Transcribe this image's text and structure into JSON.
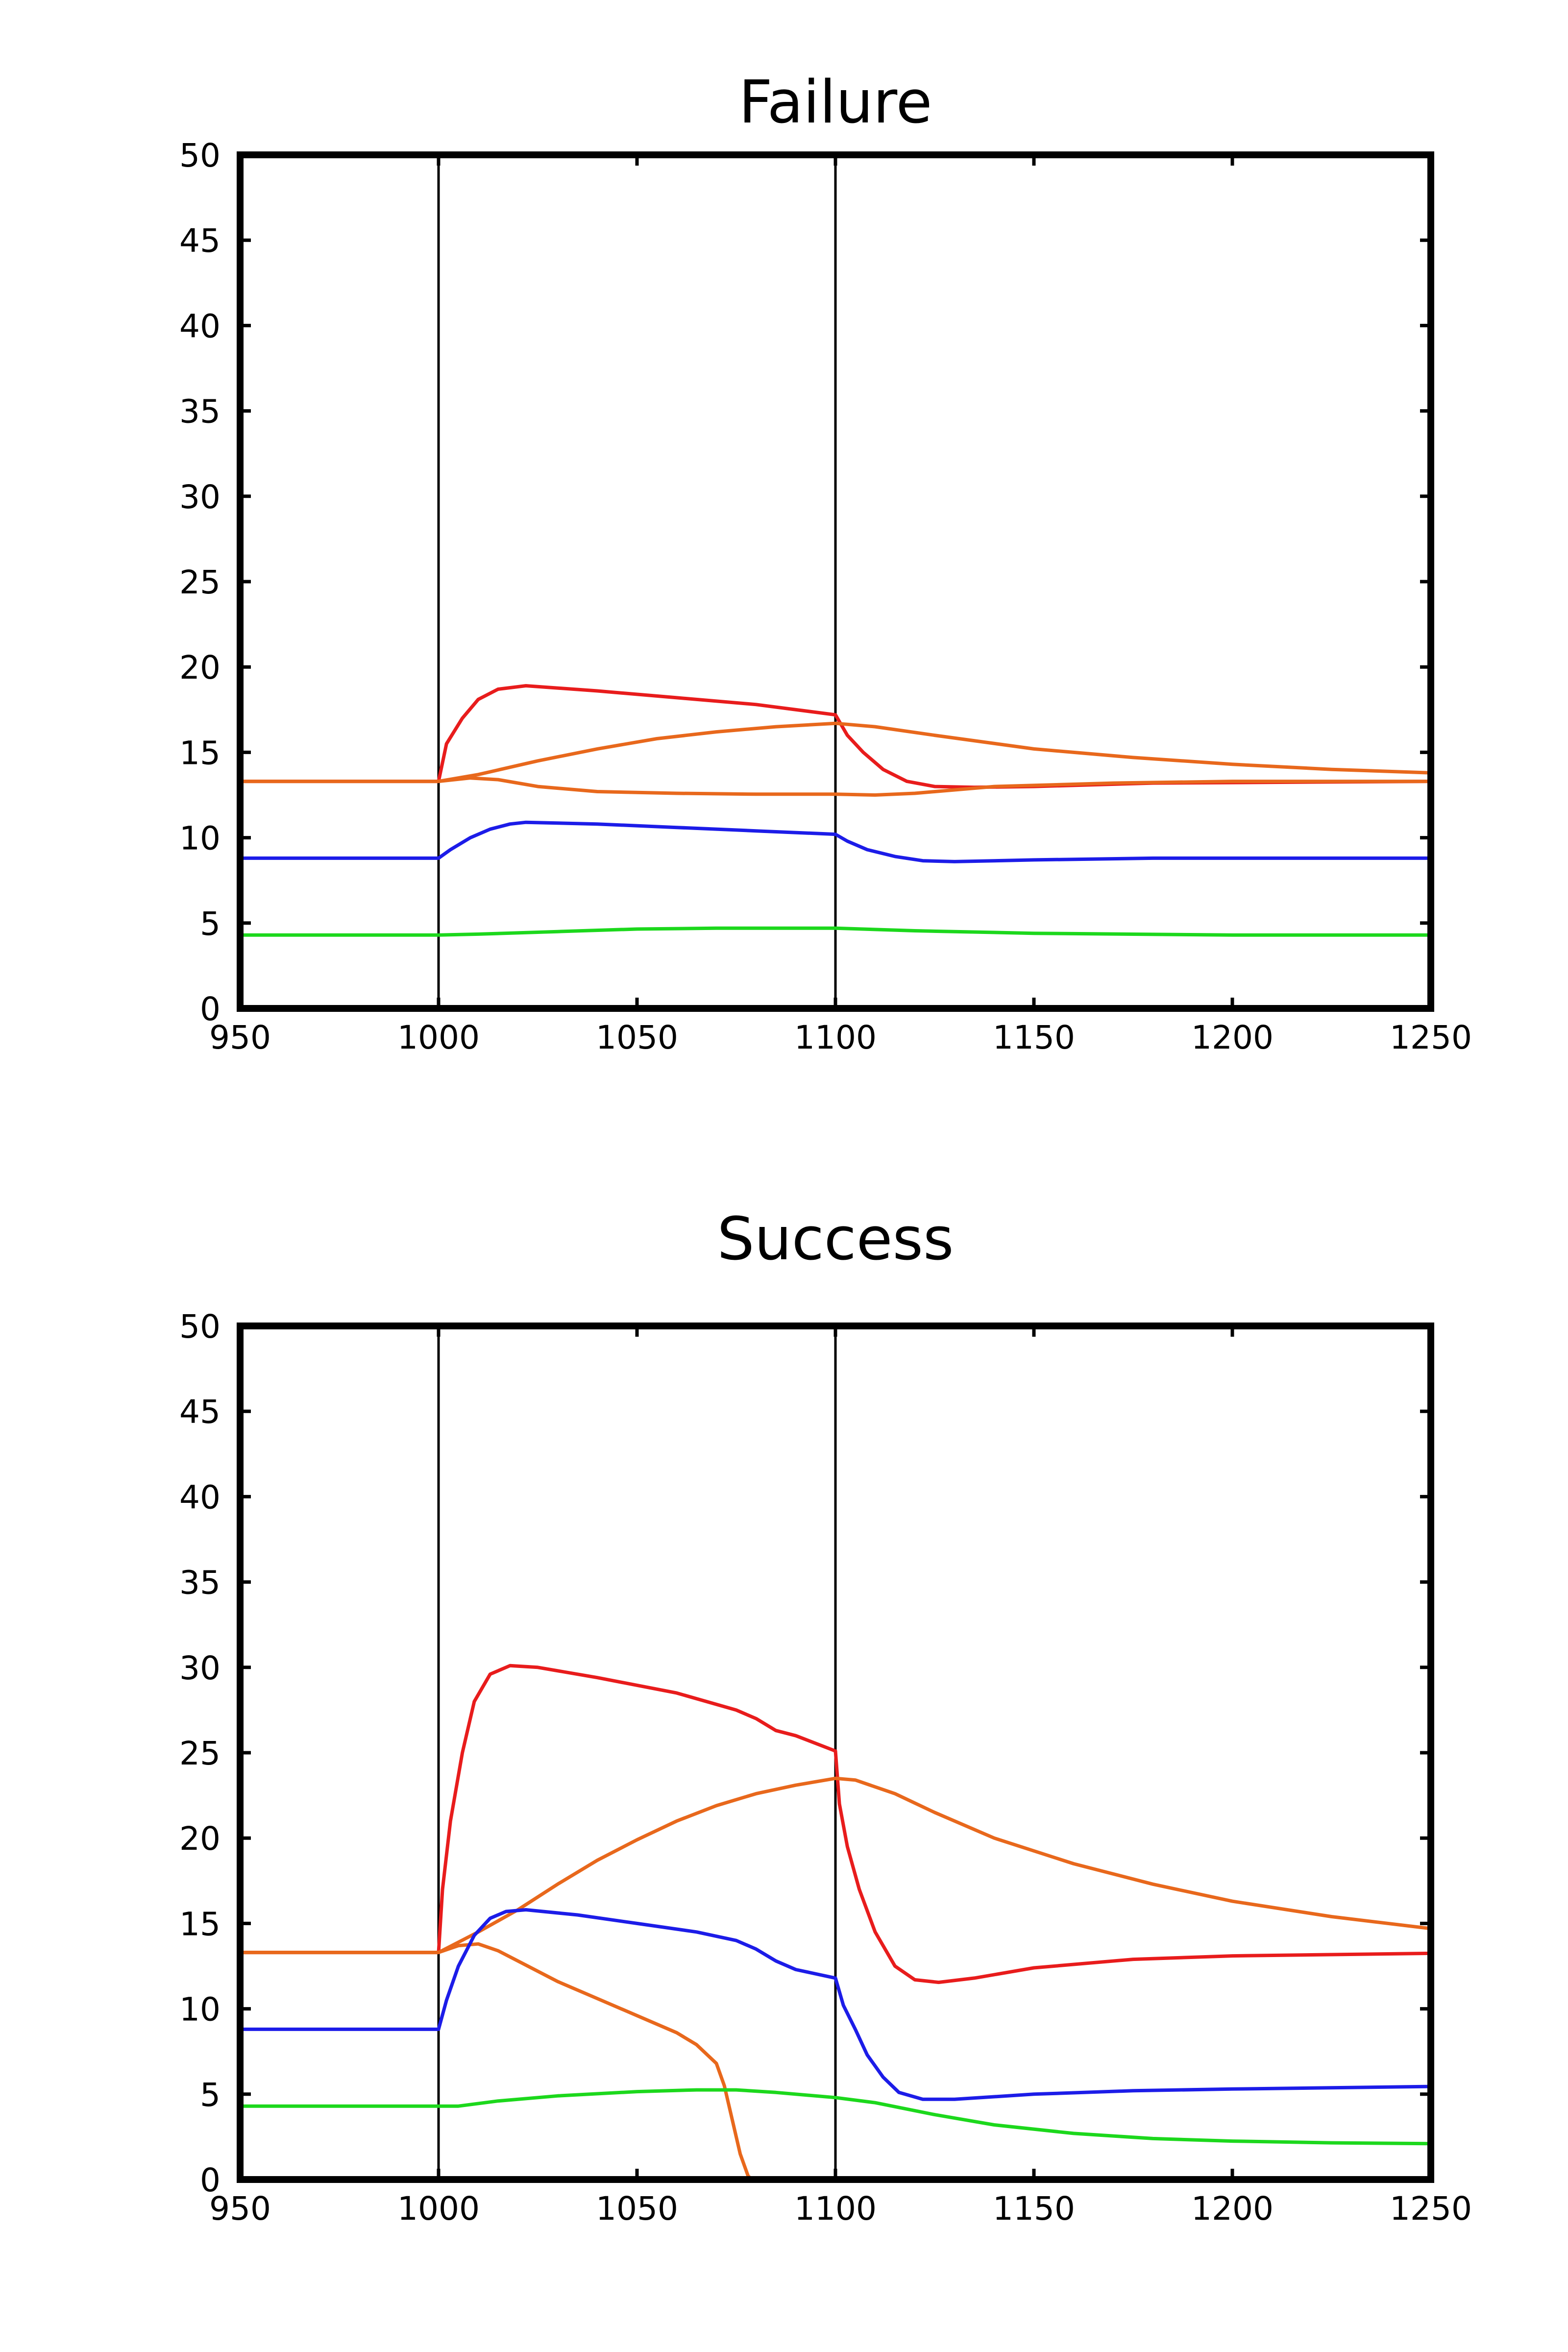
{
  "chart_data": [
    {
      "type": "line",
      "title": "Failure",
      "xlabel": "",
      "ylabel": "",
      "xlim": [
        950,
        1250
      ],
      "ylim": [
        0,
        50
      ],
      "x_ticks": [
        950,
        1000,
        1050,
        1100,
        1150,
        1200,
        1250
      ],
      "y_ticks": [
        0,
        5,
        10,
        15,
        20,
        25,
        30,
        35,
        40,
        45,
        50
      ],
      "grid": false,
      "vertical_markers": [
        1000,
        1100
      ],
      "series": [
        {
          "color": "#e81c1c",
          "points": [
            [
              950,
              13.3
            ],
            [
              1000,
              13.3
            ],
            [
              1002,
              15.5
            ],
            [
              1006,
              17.0
            ],
            [
              1010,
              18.1
            ],
            [
              1015,
              18.7
            ],
            [
              1022,
              18.9
            ],
            [
              1040,
              18.6
            ],
            [
              1060,
              18.2
            ],
            [
              1080,
              17.8
            ],
            [
              1100,
              17.2
            ],
            [
              1103,
              16.0
            ],
            [
              1107,
              15.0
            ],
            [
              1112,
              14.0
            ],
            [
              1118,
              13.3
            ],
            [
              1125,
              13.0
            ],
            [
              1135,
              12.95
            ],
            [
              1150,
              13.0
            ],
            [
              1180,
              13.2
            ],
            [
              1250,
              13.3
            ]
          ]
        },
        {
          "color": "#e8681c",
          "points": [
            [
              950,
              13.3
            ],
            [
              1000,
              13.3
            ],
            [
              1010,
              13.7
            ],
            [
              1025,
              14.5
            ],
            [
              1040,
              15.2
            ],
            [
              1055,
              15.8
            ],
            [
              1070,
              16.2
            ],
            [
              1085,
              16.5
            ],
            [
              1100,
              16.7
            ],
            [
              1110,
              16.5
            ],
            [
              1125,
              16.0
            ],
            [
              1150,
              15.2
            ],
            [
              1175,
              14.7
            ],
            [
              1200,
              14.3
            ],
            [
              1225,
              14.0
            ],
            [
              1250,
              13.8
            ]
          ]
        },
        {
          "color": "#e8681c",
          "points": [
            [
              950,
              13.3
            ],
            [
              1000,
              13.3
            ],
            [
              1008,
              13.5
            ],
            [
              1015,
              13.4
            ],
            [
              1025,
              13.0
            ],
            [
              1040,
              12.7
            ],
            [
              1060,
              12.6
            ],
            [
              1080,
              12.55
            ],
            [
              1100,
              12.55
            ],
            [
              1110,
              12.5
            ],
            [
              1120,
              12.6
            ],
            [
              1140,
              13.0
            ],
            [
              1170,
              13.2
            ],
            [
              1200,
              13.3
            ],
            [
              1250,
              13.3
            ]
          ]
        },
        {
          "color": "#1c1ce8",
          "points": [
            [
              950,
              8.8
            ],
            [
              1000,
              8.8
            ],
            [
              1003,
              9.3
            ],
            [
              1008,
              10.0
            ],
            [
              1013,
              10.5
            ],
            [
              1018,
              10.8
            ],
            [
              1022,
              10.9
            ],
            [
              1040,
              10.8
            ],
            [
              1060,
              10.6
            ],
            [
              1080,
              10.4
            ],
            [
              1100,
              10.2
            ],
            [
              1103,
              9.8
            ],
            [
              1108,
              9.3
            ],
            [
              1115,
              8.9
            ],
            [
              1122,
              8.65
            ],
            [
              1130,
              8.6
            ],
            [
              1150,
              8.7
            ],
            [
              1180,
              8.8
            ],
            [
              1250,
              8.8
            ]
          ]
        },
        {
          "color": "#1cd81c",
          "points": [
            [
              950,
              4.3
            ],
            [
              1000,
              4.3
            ],
            [
              1010,
              4.35
            ],
            [
              1030,
              4.5
            ],
            [
              1050,
              4.65
            ],
            [
              1070,
              4.7
            ],
            [
              1100,
              4.7
            ],
            [
              1120,
              4.55
            ],
            [
              1150,
              4.4
            ],
            [
              1200,
              4.3
            ],
            [
              1250,
              4.3
            ]
          ]
        }
      ]
    },
    {
      "type": "line",
      "title": "Success",
      "xlabel": "",
      "ylabel": "",
      "xlim": [
        950,
        1250
      ],
      "ylim": [
        0,
        50
      ],
      "x_ticks": [
        950,
        1000,
        1050,
        1100,
        1150,
        1200,
        1250
      ],
      "y_ticks": [
        0,
        5,
        10,
        15,
        20,
        25,
        30,
        35,
        40,
        45,
        50
      ],
      "grid": false,
      "vertical_markers": [
        1000,
        1100
      ],
      "series": [
        {
          "color": "#e81c1c",
          "points": [
            [
              950,
              13.3
            ],
            [
              1000,
              13.3
            ],
            [
              1001,
              17.0
            ],
            [
              1003,
              21.0
            ],
            [
              1006,
              25.0
            ],
            [
              1009,
              28.0
            ],
            [
              1013,
              29.6
            ],
            [
              1018,
              30.1
            ],
            [
              1025,
              30.0
            ],
            [
              1040,
              29.4
            ],
            [
              1060,
              28.5
            ],
            [
              1075,
              27.5
            ],
            [
              1080,
              27.0
            ],
            [
              1085,
              26.3
            ],
            [
              1090,
              26.0
            ],
            [
              1100,
              25.1
            ],
            [
              1101,
              22.0
            ],
            [
              1103,
              19.5
            ],
            [
              1106,
              17.0
            ],
            [
              1110,
              14.5
            ],
            [
              1115,
              12.5
            ],
            [
              1120,
              11.7
            ],
            [
              1126,
              11.55
            ],
            [
              1135,
              11.8
            ],
            [
              1150,
              12.4
            ],
            [
              1175,
              12.9
            ],
            [
              1200,
              13.1
            ],
            [
              1250,
              13.25
            ]
          ]
        },
        {
          "color": "#e8681c",
          "points": [
            [
              950,
              13.3
            ],
            [
              1000,
              13.3
            ],
            [
              1010,
              14.5
            ],
            [
              1020,
              15.8
            ],
            [
              1030,
              17.3
            ],
            [
              1040,
              18.7
            ],
            [
              1050,
              19.9
            ],
            [
              1060,
              21.0
            ],
            [
              1070,
              21.9
            ],
            [
              1080,
              22.6
            ],
            [
              1090,
              23.1
            ],
            [
              1100,
              23.5
            ],
            [
              1105,
              23.4
            ],
            [
              1115,
              22.6
            ],
            [
              1125,
              21.5
            ],
            [
              1140,
              20.0
            ],
            [
              1160,
              18.5
            ],
            [
              1180,
              17.3
            ],
            [
              1200,
              16.3
            ],
            [
              1225,
              15.4
            ],
            [
              1250,
              14.7
            ]
          ]
        },
        {
          "color": "#e8681c",
          "points": [
            [
              950,
              13.3
            ],
            [
              1000,
              13.3
            ],
            [
              1005,
              13.7
            ],
            [
              1010,
              13.8
            ],
            [
              1015,
              13.4
            ],
            [
              1020,
              12.8
            ],
            [
              1030,
              11.6
            ],
            [
              1040,
              10.6
            ],
            [
              1050,
              9.6
            ],
            [
              1060,
              8.6
            ],
            [
              1065,
              7.9
            ],
            [
              1070,
              6.8
            ],
            [
              1072,
              5.5
            ],
            [
              1074,
              3.5
            ],
            [
              1076,
              1.5
            ],
            [
              1078,
              0.2
            ],
            [
              1079,
              0
            ]
          ]
        },
        {
          "color": "#1c1ce8",
          "points": [
            [
              950,
              8.8
            ],
            [
              1000,
              8.8
            ],
            [
              1002,
              10.5
            ],
            [
              1005,
              12.5
            ],
            [
              1009,
              14.3
            ],
            [
              1013,
              15.3
            ],
            [
              1017,
              15.7
            ],
            [
              1022,
              15.8
            ],
            [
              1035,
              15.5
            ],
            [
              1050,
              15.0
            ],
            [
              1065,
              14.5
            ],
            [
              1075,
              14.0
            ],
            [
              1080,
              13.5
            ],
            [
              1085,
              12.8
            ],
            [
              1090,
              12.3
            ],
            [
              1100,
              11.8
            ],
            [
              1102,
              10.2
            ],
            [
              1105,
              8.8
            ],
            [
              1108,
              7.3
            ],
            [
              1112,
              6.0
            ],
            [
              1116,
              5.1
            ],
            [
              1122,
              4.7
            ],
            [
              1130,
              4.7
            ],
            [
              1150,
              5.0
            ],
            [
              1175,
              5.2
            ],
            [
              1200,
              5.3
            ],
            [
              1250,
              5.45
            ]
          ]
        },
        {
          "color": "#1cd81c",
          "points": [
            [
              950,
              4.3
            ],
            [
              1000,
              4.3
            ],
            [
              1005,
              4.3
            ],
            [
              1015,
              4.6
            ],
            [
              1030,
              4.9
            ],
            [
              1050,
              5.15
            ],
            [
              1065,
              5.25
            ],
            [
              1075,
              5.25
            ],
            [
              1085,
              5.1
            ],
            [
              1100,
              4.8
            ],
            [
              1110,
              4.5
            ],
            [
              1125,
              3.8
            ],
            [
              1140,
              3.2
            ],
            [
              1160,
              2.7
            ],
            [
              1180,
              2.4
            ],
            [
              1200,
              2.25
            ],
            [
              1225,
              2.15
            ],
            [
              1250,
              2.1
            ]
          ]
        }
      ]
    }
  ]
}
